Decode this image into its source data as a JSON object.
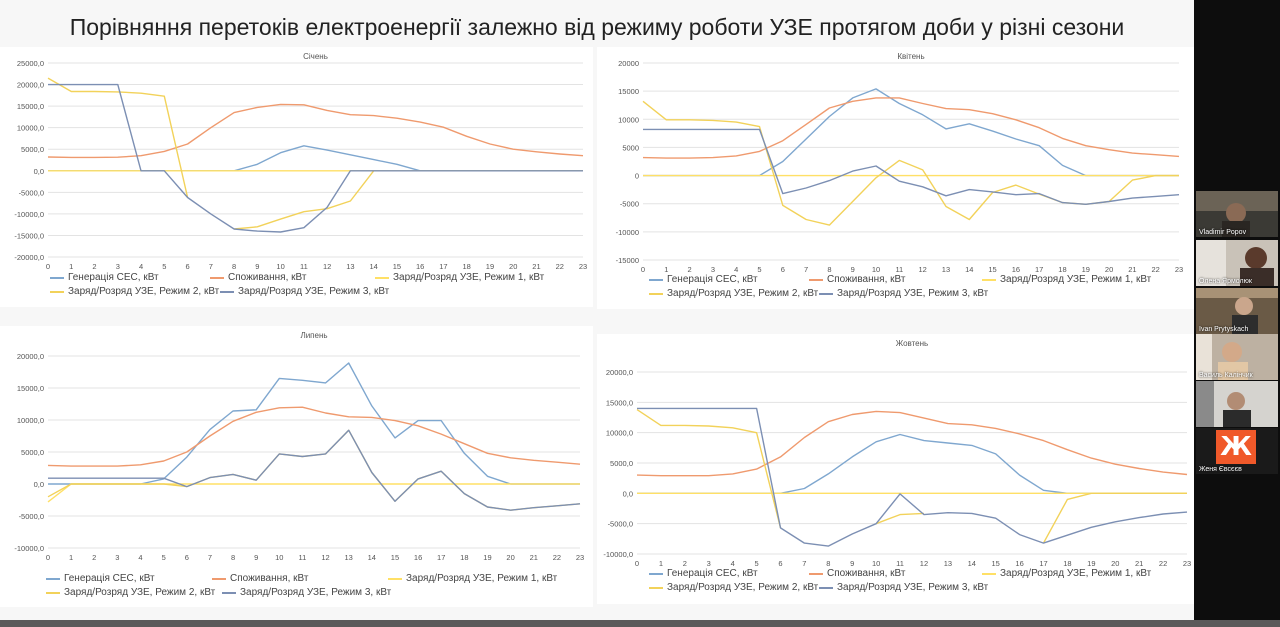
{
  "slide": {
    "title": "Порівняння перетоків електроенергії залежно від режиму роботи УЗЕ протягом доби у різні сезони"
  },
  "participants": [
    {
      "name": "Vladimir Popov"
    },
    {
      "name": "Олена Ярмолюк"
    },
    {
      "name": "Ivan Prytyskach"
    },
    {
      "name": "Василь Калінчик"
    },
    {
      "name": ""
    },
    {
      "name": "Женя Євсєєв",
      "logo_text": "Ж",
      "logo_color": "#f0592a"
    }
  ],
  "colors": {
    "generation": "#7fa7cf",
    "consumption": "#ef9a6e",
    "mode1": "#ffe066",
    "mode2": "#f2d25a",
    "mode3": "#7c8fb3",
    "grid": "#e3e3e3"
  },
  "chart_data": [
    {
      "type": "line",
      "title": "Січень",
      "x": [
        0,
        1,
        2,
        3,
        4,
        5,
        6,
        7,
        8,
        9,
        10,
        11,
        12,
        13,
        14,
        15,
        16,
        17,
        18,
        19,
        20,
        21,
        22,
        23
      ],
      "ylim": [
        -20000,
        25000
      ],
      "yticks": [
        "25000,0",
        "20000,0",
        "15000,0",
        "10000,0",
        "5000,0",
        "0,0",
        "-5000,0",
        "-10000,0",
        "-15000,0",
        "-20000,0"
      ],
      "ytick_values": [
        25000,
        20000,
        15000,
        10000,
        5000,
        0,
        -5000,
        -10000,
        -15000,
        -20000
      ],
      "grid": true,
      "legend_position": "bottom",
      "series": [
        {
          "name": "Генерація СЕС, кВт",
          "color_key": "generation",
          "values": [
            0,
            0,
            0,
            0,
            0,
            0,
            0,
            0,
            0,
            1500,
            4200,
            5800,
            4800,
            3700,
            2600,
            1500,
            0,
            0,
            0,
            0,
            0,
            0,
            0,
            0
          ]
        },
        {
          "name": "Споживання, кВт",
          "color_key": "consumption",
          "values": [
            3200,
            3100,
            3100,
            3150,
            3500,
            4500,
            6200,
            10000,
            13500,
            14700,
            15400,
            15300,
            14000,
            13000,
            12800,
            12200,
            11300,
            10100,
            8000,
            6200,
            5000,
            4400,
            3900,
            3500
          ]
        },
        {
          "name": "Заряд/Розряд УЗЕ, Режим 1, кВт",
          "color_key": "mode1",
          "values": [
            0,
            0,
            0,
            0,
            0,
            0,
            0,
            0,
            0,
            0,
            0,
            0,
            0,
            0,
            0,
            0,
            0,
            0,
            0,
            0,
            0,
            0,
            0,
            0
          ]
        },
        {
          "name": "Заряд/Розряд УЗЕ, Режим 2, кВт",
          "color_key": "mode2",
          "values": [
            21500,
            18400,
            18400,
            18300,
            18000,
            17300,
            -6200,
            null,
            -13500,
            -13000,
            -11200,
            -9500,
            -8800,
            -7000,
            0,
            null,
            null,
            null,
            null,
            null,
            null,
            null,
            null,
            null
          ]
        },
        {
          "name": "Заряд/Розряд УЗЕ, Режим 3, кВт",
          "color_key": "mode3",
          "values": [
            20000,
            20000,
            20000,
            20000,
            0,
            0,
            -6200,
            -10000,
            -13500,
            -14000,
            -14200,
            -13200,
            -8500,
            0,
            0,
            0,
            0,
            0,
            0,
            0,
            0,
            0,
            0,
            0
          ]
        }
      ]
    },
    {
      "type": "line",
      "title": "Квітень",
      "x": [
        0,
        1,
        2,
        3,
        4,
        5,
        6,
        7,
        8,
        9,
        10,
        11,
        12,
        13,
        14,
        15,
        16,
        17,
        18,
        19,
        20,
        21,
        22,
        23
      ],
      "ylim": [
        -15000,
        20000
      ],
      "yticks": [
        "20000",
        "15000",
        "10000",
        "5000",
        "0",
        "-5000",
        "-10000",
        "-15000"
      ],
      "ytick_values": [
        20000,
        15000,
        10000,
        5000,
        0,
        -5000,
        -10000,
        -15000
      ],
      "grid": true,
      "legend_position": "bottom",
      "series": [
        {
          "name": "Генерація СЕС, кВт",
          "color_key": "generation",
          "values": [
            0,
            0,
            0,
            0,
            0,
            0,
            2500,
            6500,
            10500,
            13800,
            15400,
            12800,
            10800,
            8300,
            9200,
            7900,
            6500,
            5300,
            1800,
            0,
            0,
            0,
            0,
            0
          ]
        },
        {
          "name": "Споживання, кВт",
          "color_key": "consumption",
          "values": [
            3200,
            3100,
            3100,
            3200,
            3500,
            4300,
            6200,
            9100,
            12000,
            13200,
            13800,
            13800,
            12800,
            11900,
            11700,
            11000,
            9900,
            8500,
            6600,
            5300,
            4600,
            4000,
            3700,
            3400
          ]
        },
        {
          "name": "Заряд/Розряд УЗЕ, Режим 1, кВт",
          "color_key": "mode1",
          "values": [
            0,
            0,
            0,
            0,
            0,
            0,
            0,
            0,
            0,
            0,
            0,
            0,
            0,
            0,
            0,
            0,
            0,
            0,
            0,
            0,
            0,
            0,
            0,
            0
          ]
        },
        {
          "name": "Заряд/Розряд УЗЕ, Режим 2, кВт",
          "color_key": "mode2",
          "values": [
            13200,
            9900,
            9900,
            9800,
            9500,
            8700,
            -5300,
            -7800,
            -8800,
            -4600,
            -400,
            2700,
            1000,
            -5500,
            -7800,
            -3000,
            -1700,
            -3300,
            -4800,
            -5100,
            -4600,
            -800,
            0,
            0
          ]
        },
        {
          "name": "Заряд/Розряд УЗЕ, Режим 3, кВт",
          "color_key": "mode3",
          "values": [
            8200,
            8200,
            8200,
            8200,
            8200,
            8200,
            -3200,
            -2200,
            -900,
            800,
            1700,
            -1000,
            -2000,
            -3600,
            -2500,
            -2900,
            -3400,
            -3200,
            -4800,
            -5100,
            -4600,
            -4000,
            -3700,
            -3400
          ]
        }
      ]
    },
    {
      "type": "line",
      "title": "Липень",
      "x": [
        0,
        1,
        2,
        3,
        4,
        5,
        6,
        7,
        8,
        9,
        10,
        11,
        12,
        13,
        14,
        15,
        16,
        17,
        18,
        19,
        20,
        21,
        22,
        23
      ],
      "ylim": [
        -10000,
        20000
      ],
      "yticks": [
        "20000,0",
        "15000,0",
        "10000,0",
        "5000,0",
        "0,0",
        "-5000,0",
        "-10000,0"
      ],
      "ytick_values": [
        20000,
        15000,
        10000,
        5000,
        0,
        -5000,
        -10000
      ],
      "grid": true,
      "legend_position": "bottom",
      "series": [
        {
          "name": "Генерація СЕС, кВт",
          "color_key": "generation",
          "values": [
            0,
            0,
            0,
            0,
            0,
            800,
            4200,
            8500,
            11400,
            11600,
            16500,
            16200,
            15800,
            18900,
            12200,
            7200,
            9900,
            9900,
            4800,
            1200,
            0,
            0,
            0,
            0
          ]
        },
        {
          "name": "Споживання, кВт",
          "color_key": "consumption",
          "values": [
            2900,
            2800,
            2800,
            2800,
            3000,
            3600,
            5000,
            7500,
            9800,
            11200,
            11900,
            12000,
            11100,
            10500,
            10400,
            9900,
            9100,
            7800,
            6300,
            4800,
            4100,
            3700,
            3400,
            3100
          ]
        },
        {
          "name": "Заряд/Розряд УЗЕ, Режим 1, кВт",
          "color_key": "mode1",
          "values": [
            -2800,
            0,
            0,
            0,
            0,
            0,
            0,
            0,
            0,
            0,
            0,
            0,
            0,
            0,
            0,
            0,
            0,
            0,
            0,
            0,
            0,
            0,
            0,
            0
          ]
        },
        {
          "name": "Заряд/Розряд УЗЕ, Режим 2, кВт",
          "color_key": "mode2",
          "values": [
            -2000,
            0,
            0,
            0,
            0,
            0,
            -400,
            1000,
            1500,
            600,
            4700,
            4300,
            4700,
            8400,
            1800,
            -2700,
            800,
            2000,
            -1500,
            -3600,
            -4100,
            -3700,
            -3400,
            -3100
          ]
        },
        {
          "name": "Заряд/Розряд УЗЕ, Режим 3, кВт",
          "color_key": "mode3",
          "values": [
            900,
            900,
            900,
            900,
            900,
            900,
            -400,
            1000,
            1500,
            600,
            4700,
            4300,
            4700,
            8400,
            1800,
            -2700,
            800,
            2000,
            -1500,
            -3600,
            -4100,
            -3700,
            -3400,
            -3100
          ]
        }
      ]
    },
    {
      "type": "line",
      "title": "Жовтень",
      "x": [
        0,
        1,
        2,
        3,
        4,
        5,
        6,
        7,
        8,
        9,
        10,
        11,
        12,
        13,
        14,
        15,
        16,
        17,
        18,
        19,
        20,
        21,
        22,
        23
      ],
      "ylim": [
        -10000,
        20000
      ],
      "yticks": [
        "20000,0",
        "15000,0",
        "10000,0",
        "5000,0",
        "0,0",
        "-5000,0",
        "-10000,0"
      ],
      "ytick_values": [
        20000,
        15000,
        10000,
        5000,
        0,
        -5000,
        -10000
      ],
      "grid": true,
      "legend_position": "bottom",
      "series": [
        {
          "name": "Генерація СЕС, кВт",
          "color_key": "generation",
          "values": [
            0,
            0,
            0,
            0,
            0,
            0,
            0,
            800,
            3200,
            6000,
            8500,
            9700,
            8700,
            8300,
            7900,
            6500,
            3000,
            500,
            0,
            0,
            0,
            0,
            0,
            0
          ]
        },
        {
          "name": "Споживання, кВт",
          "color_key": "consumption",
          "values": [
            3000,
            2900,
            2900,
            2900,
            3200,
            4000,
            6000,
            9200,
            11800,
            13000,
            13500,
            13300,
            12400,
            11500,
            11300,
            10700,
            9800,
            8700,
            7200,
            5800,
            4800,
            4100,
            3500,
            3100
          ]
        },
        {
          "name": "Заряд/Розряд УЗЕ, Режим 1, кВт",
          "color_key": "mode1",
          "values": [
            0,
            0,
            0,
            0,
            0,
            0,
            0,
            0,
            0,
            0,
            0,
            0,
            0,
            0,
            0,
            0,
            0,
            0,
            0,
            0,
            0,
            0,
            0,
            0
          ]
        },
        {
          "name": "Заряд/Розряд УЗЕ, Режим 2, кВт",
          "color_key": "mode2",
          "values": [
            13800,
            11200,
            11200,
            11100,
            10800,
            10000,
            -5700,
            null,
            null,
            null,
            -5000,
            -3500,
            -3300,
            null,
            null,
            null,
            null,
            -8200,
            -1000,
            0,
            0,
            0,
            0,
            0
          ]
        },
        {
          "name": "Заряд/Розряд УЗЕ, Режим 3, кВт",
          "color_key": "mode3",
          "values": [
            14000,
            14000,
            14000,
            14000,
            14000,
            14000,
            -5700,
            -8200,
            -8700,
            -6700,
            -5000,
            -100,
            -3500,
            -3200,
            -3300,
            -4100,
            -6800,
            -8200,
            -6900,
            -5600,
            -4700,
            -4000,
            -3400,
            -3100
          ]
        }
      ]
    }
  ]
}
